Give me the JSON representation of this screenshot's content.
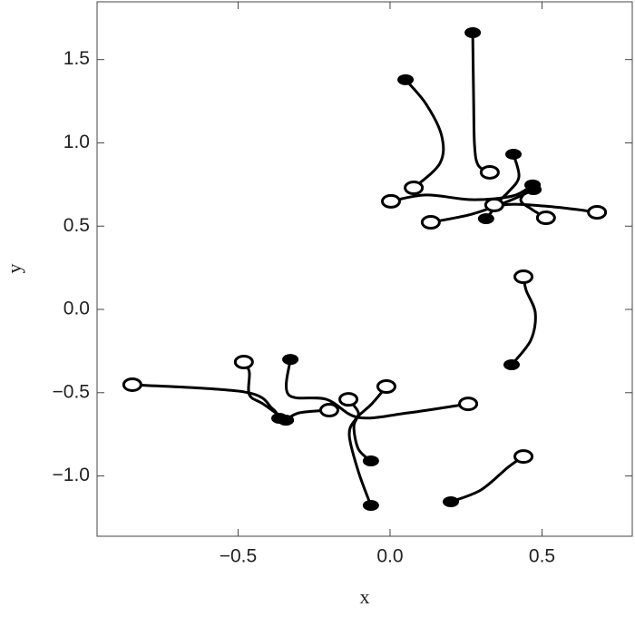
{
  "chart_data": {
    "type": "trajectory",
    "x_label": "x",
    "y_label": "y",
    "xlim": [
      -0.964,
      0.797
    ],
    "ylim": [
      -1.362,
      1.847
    ],
    "xticks": [
      {
        "value": -0.5,
        "label": "−0.5"
      },
      {
        "value": 0,
        "label": "0.0"
      },
      {
        "value": 0.5,
        "label": "0.5"
      }
    ],
    "yticks": [
      {
        "value": -1,
        "label": "−1.0"
      },
      {
        "value": -0.5,
        "label": "−0.5"
      },
      {
        "value": 0,
        "label": "0.0"
      },
      {
        "value": 0.5,
        "label": "0.5"
      },
      {
        "value": 1,
        "label": "1.0"
      },
      {
        "value": 1.5,
        "label": "1.5"
      }
    ],
    "color": "#000000",
    "series": [
      {
        "x": [
          0.051,
          0.119,
          0.17,
          0.164,
          0.078
        ],
        "y": [
          1.379,
          1.232,
          1.041,
          0.877,
          0.73
        ]
      },
      {
        "x": [
          0.272,
          0.275,
          0.278,
          0.29,
          0.328
        ],
        "y": [
          1.662,
          1.259,
          0.986,
          0.866,
          0.823
        ]
      },
      {
        "x": [
          0.406,
          0.424,
          0.388,
          0.343
        ],
        "y": [
          0.932,
          0.796,
          0.703,
          0.627
        ]
      },
      {
        "x": [
          0.469,
          0.403,
          0.269,
          0.119,
          0.003
        ],
        "y": [
          0.747,
          0.681,
          0.659,
          0.687,
          0.649
        ]
      },
      {
        "x": [
          0.316,
          0.373,
          0.537,
          0.681
        ],
        "y": [
          0.545,
          0.627,
          0.616,
          0.583
        ]
      },
      {
        "x": [
          0.472,
          0.388,
          0.269,
          0.134
        ],
        "y": [
          0.719,
          0.649,
          0.572,
          0.523
        ]
      },
      {
        "x": [
          0.469,
          0.43,
          0.463,
          0.513
        ],
        "y": [
          0.747,
          0.66,
          0.605,
          0.55
        ]
      },
      {
        "x": [
          0.4,
          0.463,
          0.478,
          0.448,
          0.439
        ],
        "y": [
          -0.332,
          -0.185,
          -0.022,
          0.114,
          0.196
        ]
      },
      {
        "x": [
          0.2,
          0.299,
          0.388,
          0.439
        ],
        "y": [
          -1.155,
          -1.084,
          -0.948,
          -0.883
        ]
      },
      {
        "x": [
          -0.364,
          -0.388,
          -0.478,
          -0.848
        ],
        "y": [
          -0.654,
          -0.594,
          -0.496,
          -0.452
        ]
      },
      {
        "x": [
          -0.343,
          -0.418,
          -0.463,
          -0.463,
          -0.481
        ],
        "y": [
          -0.665,
          -0.567,
          -0.512,
          -0.376,
          -0.316
        ]
      },
      {
        "x": [
          -0.328,
          -0.334,
          -0.209,
          -0.104,
          0.06,
          0.257
        ],
        "y": [
          -0.3,
          -0.512,
          -0.54,
          -0.649,
          -0.621,
          -0.567
        ]
      },
      {
        "x": [
          -0.063,
          -0.104,
          -0.134,
          -0.113,
          -0.06,
          -0.012
        ],
        "y": [
          -1.177,
          -0.975,
          -0.757,
          -0.659,
          -0.567,
          -0.463
        ]
      },
      {
        "x": [
          -0.063,
          -0.104,
          -0.119,
          -0.104,
          -0.137
        ],
        "y": [
          -0.91,
          -0.839,
          -0.703,
          -0.621,
          -0.54
        ]
      },
      {
        "x": [
          -0.343,
          -0.299,
          -0.2
        ],
        "y": [
          -0.665,
          -0.621,
          -0.605
        ]
      }
    ]
  }
}
